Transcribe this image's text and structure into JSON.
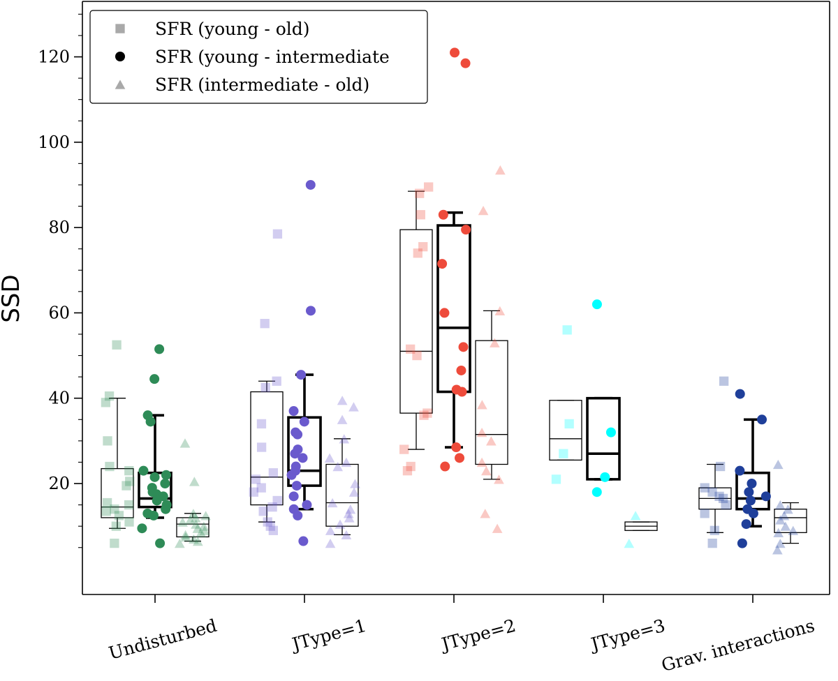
{
  "chart_data": {
    "type": "box-strip",
    "ylabel": "SSD",
    "xlabel": "",
    "ylim": [
      -6,
      133
    ],
    "yticks": [
      20,
      40,
      60,
      80,
      100,
      120
    ],
    "ytick_labels": [
      "20",
      "40",
      "60",
      "80",
      "100",
      "120"
    ],
    "categories": [
      "Undisturbed",
      "JType=1",
      "JType=2",
      "JType=3",
      "Grav. interactions"
    ],
    "category_colors": [
      "#2e8b57",
      "#6a5acd",
      "#ee4b3b",
      "#00ffff",
      "#1f3f9a"
    ],
    "series": [
      {
        "name": "SFR (young - old)",
        "marker": "square",
        "point_opacity": 0.3,
        "box_linewidth": "thin"
      },
      {
        "name": "SFR (young - intermediate",
        "marker": "circle",
        "point_opacity": 1.0,
        "box_linewidth": "thick"
      },
      {
        "name": "SFR (intermediate - old)",
        "marker": "triangle",
        "point_opacity": 0.3,
        "box_linewidth": "thin"
      }
    ],
    "groups": [
      {
        "category": "Undisturbed",
        "boxes": [
          {
            "series": 0,
            "whislo": 9.5,
            "q1": 12,
            "med": 14.5,
            "q3": 23.5,
            "whishi": 40,
            "points": [
              52.5,
              40.5,
              39,
              30,
              24,
              23,
              20.5,
              19.5,
              15.5,
              15,
              14,
              13.5,
              12.5,
              11,
              10,
              6
            ]
          },
          {
            "series": 1,
            "whislo": 12,
            "q1": 14.5,
            "med": 16.5,
            "q3": 22.5,
            "whishi": 36,
            "points": [
              51.5,
              44.5,
              36,
              34.5,
              23,
              22,
              21.5,
              20,
              19,
              18,
              17.5,
              17,
              16,
              15,
              14,
              13,
              12.5,
              9.5,
              6
            ]
          },
          {
            "series": 2,
            "whislo": 6.5,
            "q1": 7.5,
            "med": 10.5,
            "q3": 12,
            "whishi": 13,
            "points": [
              29.5,
              20.5,
              13,
              12.5,
              12,
              11.5,
              11,
              10.5,
              10,
              9.5,
              9,
              8.5,
              8,
              7.5,
              7,
              6.5,
              6
            ]
          }
        ]
      },
      {
        "category": "JType=1",
        "boxes": [
          {
            "series": 0,
            "whislo": 11,
            "q1": 15,
            "med": 21.5,
            "q3": 41.5,
            "whishi": 44,
            "points": [
              78.5,
              57.5,
              44,
              42.5,
              34,
              28.5,
              22.5,
              21,
              19,
              18,
              16,
              14.5,
              13.5,
              11,
              10,
              9
            ]
          },
          {
            "series": 1,
            "whislo": 14,
            "q1": 19.5,
            "med": 23,
            "q3": 35.5,
            "whishi": 45.5,
            "points": [
              90,
              60.5,
              45.5,
              37,
              34.5,
              32,
              31.5,
              28,
              27,
              26,
              24,
              23,
              22,
              19.5,
              17,
              15,
              14,
              12.5,
              6.5
            ]
          },
          {
            "series": 2,
            "whislo": 8,
            "q1": 10,
            "med": 15.5,
            "q3": 24.5,
            "whishi": 30.5,
            "points": [
              39.5,
              38,
              35,
              30.5,
              26,
              25,
              24,
              20,
              18,
              15.5,
              14,
              13,
              12,
              10.5,
              9,
              8,
              6
            ]
          }
        ]
      },
      {
        "category": "JType=2",
        "boxes": [
          {
            "series": 0,
            "whislo": 28,
            "q1": 36.5,
            "med": 51,
            "q3": 79.5,
            "whishi": 88.5,
            "points": [
              89.5,
              88,
              83,
              75.5,
              74,
              51.5,
              50,
              36.5,
              36,
              28,
              24,
              23
            ]
          },
          {
            "series": 1,
            "whislo": 28.5,
            "q1": 41.5,
            "med": 56.5,
            "q3": 80.5,
            "whishi": 83.5,
            "points": [
              121,
              118.5,
              83,
              79.5,
              71.5,
              60,
              52,
              46.5,
              42,
              41.5,
              28.5,
              26,
              24
            ]
          },
          {
            "series": 2,
            "whislo": 21,
            "q1": 24.5,
            "med": 31.5,
            "q3": 53.5,
            "whishi": 60.5,
            "points": [
              93.5,
              84,
              60.5,
              53,
              38.5,
              32,
              30,
              25,
              23,
              21,
              13,
              9.5
            ]
          }
        ]
      },
      {
        "category": "JType=3",
        "boxes": [
          {
            "series": 0,
            "whislo": 25.5,
            "q1": 25.5,
            "med": 30.5,
            "q3": 39.5,
            "whishi": 39.5,
            "points": [
              56,
              34,
              27,
              21
            ]
          },
          {
            "series": 1,
            "whislo": 21,
            "q1": 21,
            "med": 27,
            "q3": 40,
            "whishi": 40,
            "points": [
              62,
              32,
              21.5,
              18
            ]
          },
          {
            "series": 2,
            "whislo": 9,
            "q1": 9,
            "med": 10,
            "q3": 11,
            "whishi": 11,
            "points": [
              12.5,
              6
            ]
          }
        ]
      },
      {
        "category": "Grav. interactions",
        "boxes": [
          {
            "series": 0,
            "whislo": 8.5,
            "q1": 14,
            "med": 16.5,
            "q3": 19,
            "whishi": 24.5,
            "points": [
              44,
              24,
              19,
              18,
              17,
              16.5,
              15,
              13,
              9,
              6
            ]
          },
          {
            "series": 1,
            "whislo": 10,
            "q1": 14,
            "med": 16.5,
            "q3": 22.5,
            "whishi": 35,
            "points": [
              41,
              35,
              23,
              20,
              18,
              17,
              16,
              14,
              13,
              10.5,
              6
            ]
          },
          {
            "series": 2,
            "whislo": 6,
            "q1": 8.5,
            "med": 12,
            "q3": 14,
            "whishi": 15.5,
            "points": [
              24.5,
              15,
              14,
              12.5,
              11.5,
              10,
              9,
              8.5,
              6,
              4.5
            ]
          }
        ]
      }
    ],
    "legend": {
      "location": "top-left",
      "entries": [
        "SFR (young - old)",
        "SFR (young - intermediate",
        "SFR (intermediate - old)"
      ]
    }
  }
}
